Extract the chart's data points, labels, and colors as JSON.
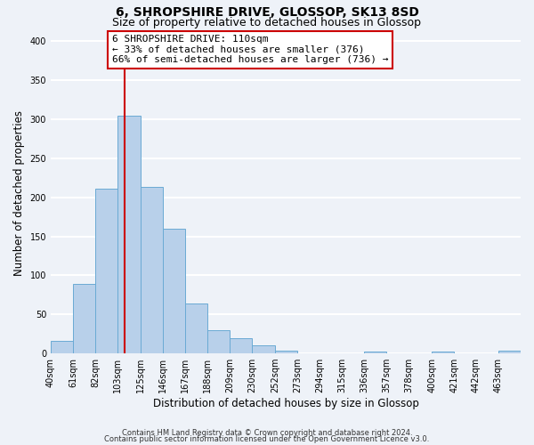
{
  "title": "6, SHROPSHIRE DRIVE, GLOSSOP, SK13 8SD",
  "subtitle": "Size of property relative to detached houses in Glossop",
  "xlabel": "Distribution of detached houses by size in Glossop",
  "ylabel": "Number of detached properties",
  "bin_labels": [
    "40sqm",
    "61sqm",
    "82sqm",
    "103sqm",
    "125sqm",
    "146sqm",
    "167sqm",
    "188sqm",
    "209sqm",
    "230sqm",
    "252sqm",
    "273sqm",
    "294sqm",
    "315sqm",
    "336sqm",
    "357sqm",
    "378sqm",
    "400sqm",
    "421sqm",
    "442sqm",
    "463sqm"
  ],
  "bar_values": [
    16,
    89,
    211,
    305,
    213,
    160,
    64,
    30,
    20,
    10,
    4,
    0,
    0,
    0,
    2,
    0,
    0,
    2,
    0,
    0,
    3
  ],
  "bar_color": "#b8d0ea",
  "bar_edge_color": "#6aaad4",
  "property_line_x": 110,
  "property_line_color": "#cc0000",
  "bin_edges_sqm": [
    40,
    61,
    82,
    103,
    125,
    146,
    167,
    188,
    209,
    230,
    252,
    273,
    294,
    315,
    336,
    357,
    378,
    400,
    421,
    442,
    463,
    484
  ],
  "annotation_title": "6 SHROPSHIRE DRIVE: 110sqm",
  "annotation_line1": "← 33% of detached houses are smaller (376)",
  "annotation_line2": "66% of semi-detached houses are larger (736) →",
  "annotation_box_color": "#ffffff",
  "annotation_box_edge": "#cc0000",
  "ylim": [
    0,
    410
  ],
  "yticks": [
    0,
    50,
    100,
    150,
    200,
    250,
    300,
    350,
    400
  ],
  "footer1": "Contains HM Land Registry data © Crown copyright and database right 2024.",
  "footer2": "Contains public sector information licensed under the Open Government Licence v3.0.",
  "background_color": "#eef2f8",
  "grid_color": "#ffffff",
  "title_fontsize": 10,
  "subtitle_fontsize": 9,
  "axis_label_fontsize": 8.5,
  "tick_fontsize": 7,
  "annotation_fontsize": 8,
  "footer_fontsize": 6
}
